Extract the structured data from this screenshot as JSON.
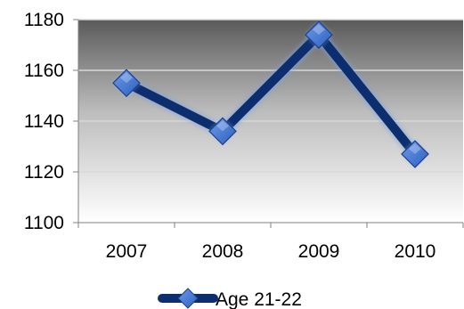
{
  "chart_data": {
    "type": "line",
    "categories": [
      "2007",
      "2008",
      "2009",
      "2010"
    ],
    "series": [
      {
        "name": "Age 21-22",
        "values": [
          1155,
          1136,
          1174,
          1127
        ]
      }
    ],
    "title": "",
    "xlabel": "",
    "ylabel": "",
    "ylim": [
      1100,
      1180
    ],
    "yticks": [
      "1100",
      "1120",
      "1140",
      "1160",
      "1180"
    ],
    "grid": true,
    "legend": "bottom",
    "colors": {
      "line": "#0d2e6e",
      "marker_fill": "#2b5fbf",
      "marker_highlight": "#6f9be8",
      "plot_bg_top": "#5a5a5a",
      "plot_bg_bottom": "#ffffff",
      "gridline": "#d8d8d8"
    }
  }
}
